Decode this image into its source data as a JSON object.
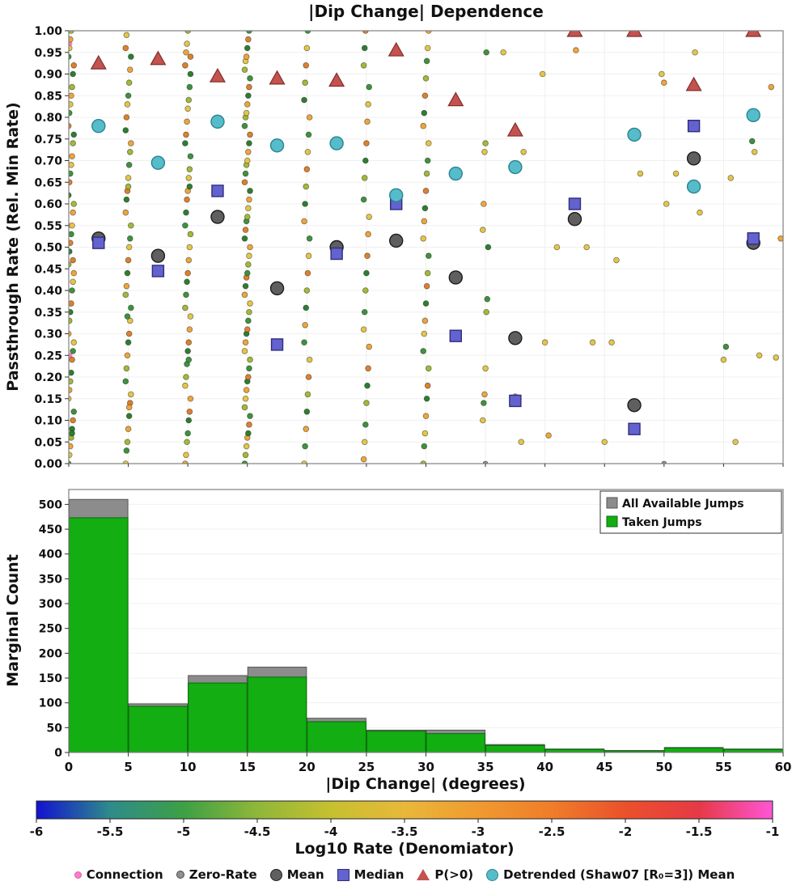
{
  "title": "|Dip Change| Dependence",
  "colors": {
    "background": "#ffffff",
    "frame": "#808080",
    "grid": "#f0f0f0",
    "connection": "#ff7bc8",
    "zero_rate": "#909090"
  },
  "palette": {
    "g": "#3f9140",
    "d": "#2e7d32",
    "l": "#a4b83a",
    "y": "#e6c44a",
    "o": "#f0a43c",
    "r": "#e07f2e"
  },
  "chart_data": [
    {
      "type": "scatter",
      "title": "|Dip Change| Dependence",
      "xlabel": "",
      "ylabel": "Passthrough Rate (Rel. Min Rate)",
      "xlim": [
        0,
        60
      ],
      "ylim": [
        0.0,
        1.0
      ],
      "grid": true,
      "yticks": [
        "1.00",
        "0.95",
        "0.90",
        "0.85",
        "0.80",
        "0.75",
        "0.70",
        "0.65",
        "0.60",
        "0.55",
        "0.50",
        "0.45",
        "0.40",
        "0.35",
        "0.30",
        "0.25",
        "0.20",
        "0.15",
        "0.10",
        "0.05",
        "0.00"
      ],
      "bin_centers": [
        2.5,
        7.5,
        12.5,
        17.5,
        22.5,
        27.5,
        32.5,
        37.5,
        42.5,
        47.5,
        52.5,
        57.5
      ],
      "series": [
        {
          "name": "Mean",
          "marker": "circle",
          "color": "#5f5f5f",
          "edge": "#1c1c1c",
          "values": [
            0.52,
            0.48,
            0.57,
            0.405,
            0.5,
            0.515,
            0.43,
            0.29,
            0.565,
            0.135,
            0.705,
            0.51
          ]
        },
        {
          "name": "Median",
          "marker": "square",
          "color": "#6462cf",
          "edge": "#2f2e7a",
          "values": [
            0.51,
            0.445,
            0.63,
            0.275,
            0.485,
            0.6,
            0.295,
            0.145,
            0.6,
            0.08,
            0.78,
            0.52
          ]
        },
        {
          "name": "P(>0)",
          "marker": "triangle",
          "color": "#c4524e",
          "edge": "#7e2f2c",
          "values": [
            0.925,
            0.935,
            0.895,
            0.89,
            0.885,
            0.955,
            0.84,
            0.77,
            1.0,
            1.0,
            0.875,
            1.0
          ]
        },
        {
          "name": "Detrended (Shaw07 [R₀=3]) Mean",
          "marker": "circle",
          "color": "#56bcc9",
          "edge": "#28848f",
          "values": [
            0.78,
            0.695,
            0.79,
            0.735,
            0.74,
            0.62,
            0.67,
            0.685,
            null,
            0.76,
            0.64,
            0.805
          ]
        }
      ],
      "small_point_columns": [
        {
          "x": 0.2,
          "ys": [
            0.0,
            0.02,
            0.04,
            0.06,
            0.08,
            0.1,
            0.12,
            0.15,
            0.17,
            0.19,
            0.21,
            0.24,
            0.26,
            0.28,
            0.3,
            0.33,
            0.35,
            0.37,
            0.4,
            0.42,
            0.44,
            0.46,
            0.49,
            0.51,
            0.53,
            0.55,
            0.58,
            0.6,
            0.62,
            0.65,
            0.67,
            0.69,
            0.71,
            0.74,
            0.76,
            0.78,
            0.81,
            0.83,
            0.85,
            0.87,
            0.9,
            0.92,
            0.94,
            0.96,
            0.98,
            1.0,
            0.07,
            0.47
          ],
          "colors": "gyoldrgyoldrgyoldrgyoldrgyoldrgyoldrgyoldrgyoldr"
        },
        {
          "x": 5,
          "ys": [
            0.0,
            0.03,
            0.05,
            0.08,
            0.11,
            0.14,
            0.16,
            0.19,
            0.22,
            0.25,
            0.28,
            0.3,
            0.33,
            0.36,
            0.39,
            0.41,
            0.44,
            0.47,
            0.5,
            0.52,
            0.55,
            0.58,
            0.61,
            0.63,
            0.66,
            0.69,
            0.72,
            0.74,
            0.77,
            0.8,
            0.83,
            0.85,
            0.88,
            0.91,
            0.94,
            0.96,
            0.99,
            0.34,
            0.64,
            0.13
          ],
          "colors": "yglodryglodryglodryglodryglodryglodryglo"
        },
        {
          "x": 10,
          "ys": [
            0.0,
            0.02,
            0.05,
            0.07,
            0.1,
            0.12,
            0.15,
            0.18,
            0.2,
            0.23,
            0.26,
            0.28,
            0.31,
            0.34,
            0.36,
            0.39,
            0.42,
            0.44,
            0.47,
            0.5,
            0.53,
            0.55,
            0.58,
            0.61,
            0.63,
            0.66,
            0.68,
            0.71,
            0.74,
            0.76,
            0.79,
            0.82,
            0.84,
            0.87,
            0.9,
            0.92,
            0.95,
            0.97,
            1.0,
            0.24,
            0.64,
            0.94
          ],
          "colors": "oylgdroylgdroylgdroylgdroylgdroylgdroylgdr"
        },
        {
          "x": 15,
          "ys": [
            0.0,
            0.02,
            0.04,
            0.06,
            0.07,
            0.09,
            0.11,
            0.13,
            0.15,
            0.17,
            0.19,
            0.2,
            0.22,
            0.24,
            0.26,
            0.28,
            0.3,
            0.31,
            0.33,
            0.35,
            0.37,
            0.39,
            0.41,
            0.43,
            0.44,
            0.46,
            0.48,
            0.5,
            0.52,
            0.54,
            0.56,
            0.57,
            0.59,
            0.61,
            0.63,
            0.65,
            0.67,
            0.69,
            0.7,
            0.72,
            0.74,
            0.76,
            0.78,
            0.8,
            0.81,
            0.83,
            0.85,
            0.87,
            0.89,
            0.91,
            0.93,
            0.94,
            0.96,
            0.98,
            1.0
          ],
          "colors": "glyodrglyodrglyodrglyodrglyodrglyodrglyodrglyodrglyodrg"
        },
        {
          "x": 20,
          "ys": [
            0.0,
            0.04,
            0.08,
            0.12,
            0.16,
            0.2,
            0.24,
            0.28,
            0.32,
            0.36,
            0.4,
            0.44,
            0.48,
            0.52,
            0.56,
            0.6,
            0.64,
            0.68,
            0.72,
            0.76,
            0.8,
            0.84,
            0.88,
            0.92,
            0.96,
            1.0
          ],
          "colors": "ygodlrygodlrygodlrygodlryg"
        },
        {
          "x": 25,
          "ys": [
            0.01,
            0.05,
            0.09,
            0.14,
            0.18,
            0.22,
            0.27,
            0.31,
            0.35,
            0.4,
            0.44,
            0.48,
            0.53,
            0.57,
            0.61,
            0.66,
            0.7,
            0.74,
            0.79,
            0.83,
            0.87,
            0.92,
            0.96,
            1.0
          ],
          "colors": "oygldroygldroygldroygldr"
        },
        {
          "x": 30,
          "ys": [
            0.0,
            0.04,
            0.07,
            0.11,
            0.15,
            0.18,
            0.22,
            0.26,
            0.3,
            0.33,
            0.37,
            0.41,
            0.44,
            0.48,
            0.52,
            0.56,
            0.59,
            0.63,
            0.67,
            0.7,
            0.74,
            0.78,
            0.81,
            0.85,
            0.89,
            0.93,
            0.96,
            1.0
          ],
          "colors": "lgyodrlgyodrlgyodrlgyodrlgyo"
        },
        {
          "x": 35,
          "ys": [
            0.1,
            0.14,
            0.16,
            0.22,
            0.35,
            0.38,
            0.5,
            0.54,
            0.6,
            0.72,
            0.74,
            0.95
          ],
          "colors": "ygoylgdyoylg"
        }
      ],
      "sparse_points": [
        [
          36.5,
          0.95,
          "y"
        ],
        [
          37.5,
          0.155,
          "o"
        ],
        [
          38,
          0.05,
          "y"
        ],
        [
          38.2,
          0.72,
          "y"
        ],
        [
          39.8,
          0.9,
          "y"
        ],
        [
          40,
          0.28,
          "y"
        ],
        [
          40.3,
          0.065,
          "o"
        ],
        [
          41,
          0.5,
          "y"
        ],
        [
          42.6,
          0.955,
          "o"
        ],
        [
          43.5,
          0.5,
          "y"
        ],
        [
          44,
          0.28,
          "y"
        ],
        [
          45,
          0.05,
          "y"
        ],
        [
          45.6,
          0.28,
          "y"
        ],
        [
          46,
          0.47,
          "y"
        ],
        [
          48,
          0.67,
          "y"
        ],
        [
          49.8,
          0.9,
          "y"
        ],
        [
          50,
          0.88,
          "o"
        ],
        [
          50.2,
          0.6,
          "y"
        ],
        [
          51,
          0.67,
          "y"
        ],
        [
          52.6,
          0.95,
          "y"
        ],
        [
          53,
          0.58,
          "y"
        ],
        [
          55,
          0.24,
          "y"
        ],
        [
          55.2,
          0.27,
          "g"
        ],
        [
          55.6,
          0.66,
          "y"
        ],
        [
          56,
          0.05,
          "y"
        ],
        [
          57.4,
          0.745,
          "g"
        ],
        [
          57.6,
          0.72,
          "y"
        ],
        [
          58,
          0.25,
          "y"
        ],
        [
          59,
          0.87,
          "o"
        ],
        [
          59.4,
          0.245,
          "y"
        ],
        [
          59.8,
          0.52,
          "o"
        ]
      ],
      "zero_rate_points": [
        [
          35,
          0.0
        ],
        [
          50,
          0.0
        ]
      ],
      "connection_points": [
        [
          0.1,
          0.97
        ],
        [
          0.1,
          0.55
        ],
        [
          0.1,
          0.25
        ]
      ]
    },
    {
      "type": "bar",
      "ylabel": "Marginal Count",
      "xlabel": "|Dip Change| (degrees)",
      "bin_edges": [
        0,
        5,
        10,
        15,
        20,
        25,
        30,
        35,
        40,
        45,
        50,
        55,
        60
      ],
      "ylim": [
        0,
        530
      ],
      "yticks": [
        0,
        50,
        100,
        150,
        200,
        250,
        300,
        350,
        400,
        450,
        500
      ],
      "xticks": [
        0,
        5,
        10,
        15,
        20,
        25,
        30,
        35,
        40,
        45,
        50,
        55,
        60
      ],
      "legend_position": "top-right",
      "series": [
        {
          "name": "All Available Jumps",
          "color": "#8c8c8c",
          "edge": "#555555",
          "values": [
            510,
            98,
            155,
            172,
            69,
            45,
            45,
            16,
            7,
            4,
            10,
            7
          ]
        },
        {
          "name": "Taken Jumps",
          "color": "#12ae12",
          "edge": "#0b6b0b",
          "values": [
            473,
            93,
            140,
            152,
            62,
            43,
            38,
            14,
            6,
            3,
            9,
            6
          ]
        }
      ]
    },
    {
      "type": "colorbar",
      "label": "Log10 Rate (Denomiator)",
      "range": [
        -6,
        -1
      ],
      "ticks": [
        "-6",
        "-5.5",
        "-5",
        "-4.5",
        "-4",
        "-3.5",
        "-3",
        "-2.5",
        "-2",
        "-1.5",
        "-1"
      ],
      "gradient": [
        [
          "0%",
          "#1212d0"
        ],
        [
          "10%",
          "#2e8b8b"
        ],
        [
          "20%",
          "#3da045"
        ],
        [
          "30%",
          "#8fb73a"
        ],
        [
          "40%",
          "#c6c02f"
        ],
        [
          "50%",
          "#e8b83a"
        ],
        [
          "60%",
          "#f09a2f"
        ],
        [
          "70%",
          "#ef7d2a"
        ],
        [
          "80%",
          "#ea512b"
        ],
        [
          "90%",
          "#e63946"
        ],
        [
          "100%",
          "#ff55d6"
        ]
      ]
    }
  ],
  "legend_bottom": {
    "items": [
      {
        "label": "Connection",
        "color": "#ff7bc8",
        "edge": "#d362a8",
        "shape": "circle",
        "size": 7,
        "icon": "connection-marker-icon"
      },
      {
        "label": "Zero-Rate",
        "color": "#909090",
        "edge": "#4a4a4a",
        "shape": "circle",
        "size": 8,
        "icon": "zero-rate-marker-icon"
      },
      {
        "label": "Mean",
        "color": "#5f5f5f",
        "edge": "#1c1c1c",
        "shape": "circle",
        "size": 13,
        "icon": "mean-marker-icon"
      },
      {
        "label": "Median",
        "color": "#6462cf",
        "edge": "#2f2e7a",
        "shape": "square",
        "size": 13,
        "icon": "median-marker-icon"
      },
      {
        "label": "P(>0)",
        "color": "#c4524e",
        "edge": "#7e2f2c",
        "shape": "triangle",
        "size": 14,
        "icon": "pgt0-marker-icon"
      },
      {
        "label": "Detrended (Shaw07 [R₀=3]) Mean",
        "color": "#56bcc9",
        "edge": "#28848f",
        "shape": "circle",
        "size": 13,
        "icon": "detrended-marker-icon"
      }
    ]
  }
}
